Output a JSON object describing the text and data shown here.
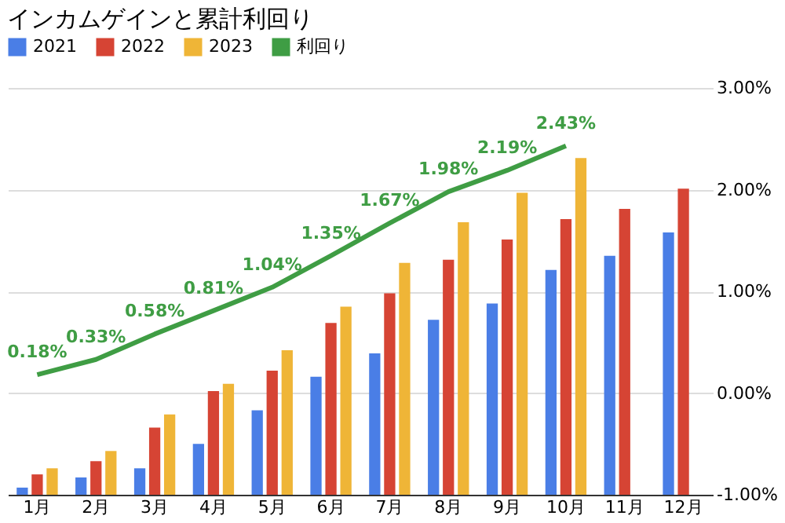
{
  "chart_data": {
    "type": "bar",
    "title": "インカムゲインと累計利回り",
    "legend": "top",
    "grid": "y2",
    "categories": [
      "1月",
      "2月",
      "3月",
      "4月",
      "5月",
      "6月",
      "7月",
      "8月",
      "9月",
      "10月",
      "11月",
      "12月"
    ],
    "series": [
      {
        "name": "2021",
        "color": "#4a7ee6",
        "axis": "y2",
        "base": [
          -1,
          -1,
          -1,
          -1,
          -1,
          -1,
          -1,
          -1,
          -1,
          -1,
          -1,
          -1
        ],
        "values": [
          0.07,
          0.17,
          0.26,
          0.5,
          0.83,
          1.16,
          1.39,
          1.72,
          1.88,
          2.21,
          2.35,
          2.58
        ]
      },
      {
        "name": "2022",
        "color": "#d64434",
        "axis": "y2",
        "base": [
          -1,
          -1,
          -1,
          -1,
          -1,
          -1,
          -1,
          -1,
          -1,
          -1,
          -1,
          -1
        ],
        "values": [
          0.2,
          0.33,
          0.66,
          1.02,
          1.22,
          1.69,
          1.98,
          2.31,
          2.51,
          2.71,
          2.81,
          3.01
        ]
      },
      {
        "name": "2023",
        "color": "#efb537",
        "axis": "y2",
        "base": [
          -1,
          -1,
          -1,
          -1,
          -1,
          -1,
          -1,
          -1,
          -1,
          -1,
          null,
          null
        ],
        "values": [
          0.26,
          0.43,
          0.79,
          1.09,
          1.42,
          1.85,
          2.28,
          2.68,
          2.97,
          3.31,
          null,
          null
        ]
      },
      {
        "name": "利回り",
        "color": "#3f9d44",
        "type": "line",
        "axis": "y2",
        "data_labels": true,
        "value_labels": [
          "0.18%",
          "0.33%",
          "0.58%",
          "0.81%",
          "1.04%",
          "1.35%",
          "1.67%",
          "1.98%",
          "2.19%",
          "2.43%",
          null,
          null
        ],
        "values": [
          0.18,
          0.33,
          0.58,
          0.81,
          1.04,
          1.35,
          1.67,
          1.98,
          2.19,
          2.43,
          null,
          null
        ]
      }
    ],
    "y2lim": [
      -1,
      3
    ],
    "y2ticks": [
      {
        "value": -1,
        "label": "-1.00%"
      },
      {
        "value": 0,
        "label": "0.00%"
      },
      {
        "value": 1,
        "label": "1.00%"
      },
      {
        "value": 2,
        "label": "2.00%"
      },
      {
        "value": 3,
        "label": "3.00%"
      }
    ]
  }
}
